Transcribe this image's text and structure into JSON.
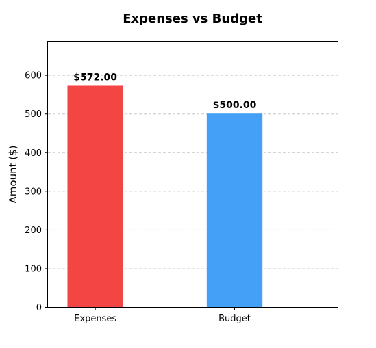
{
  "chart_data": {
    "type": "bar",
    "title": "Expenses vs Budget",
    "xlabel": "",
    "ylabel": "Amount ($)",
    "categories": [
      "Expenses",
      "Budget"
    ],
    "values": [
      572,
      500
    ],
    "value_labels": [
      "$572.00",
      "$500.00"
    ],
    "colors": [
      "#f44545",
      "#44a0f7"
    ],
    "ylim": [
      0,
      686
    ],
    "yticks": [
      0,
      100,
      200,
      300,
      400,
      500,
      600
    ],
    "grid": "y dashed"
  }
}
